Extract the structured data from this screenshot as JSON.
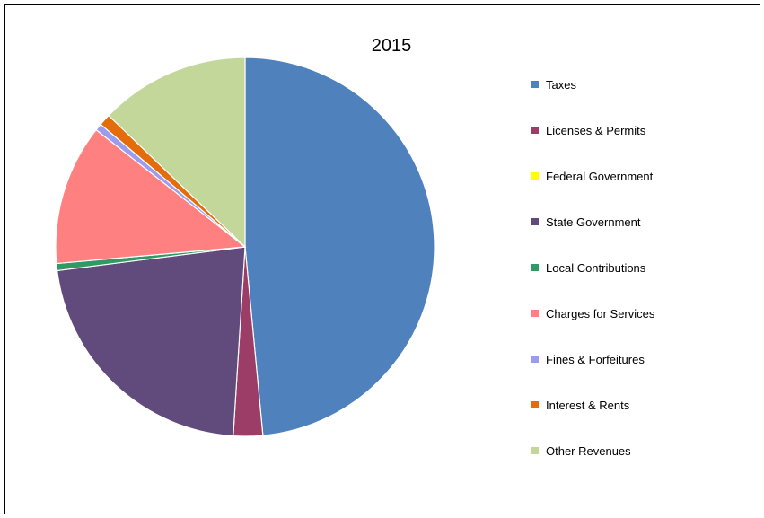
{
  "chart_data": {
    "type": "pie",
    "title": "2015",
    "legend_position": "right",
    "series": [
      {
        "categories": [
          "Taxes",
          "Licenses & Permits",
          "Federal Government",
          "State Government",
          "Local Contributions",
          "Charges for Services",
          "Fines & Forfeitures",
          "Interest & Rents",
          "Other Revenues"
        ],
        "values": [
          48.5,
          2.5,
          0.0,
          22.0,
          0.6,
          12.0,
          0.6,
          1.0,
          12.8
        ],
        "colors": [
          "#4F81BD",
          "#9B3D67",
          "#FFFF00",
          "#614A7C",
          "#2F9A64",
          "#FF8080",
          "#9B9BEF",
          "#E46C0A",
          "#C4D79B"
        ]
      }
    ]
  }
}
